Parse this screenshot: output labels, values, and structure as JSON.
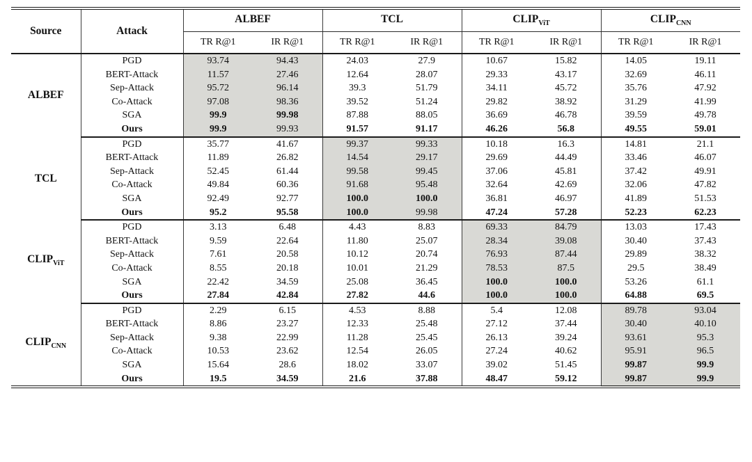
{
  "colors": {
    "highlight": "#d9d9d5",
    "rule": "#1a1a1a",
    "text": "#111111"
  },
  "table": {
    "col1_header": "Source",
    "col2_header": "Attack",
    "groups": [
      {
        "label": "ALBEF",
        "sub": ""
      },
      {
        "label": "TCL",
        "sub": ""
      },
      {
        "label": "CLIP",
        "sub": "ViT"
      },
      {
        "label": "CLIP",
        "sub": "CNN"
      }
    ],
    "subheaders": [
      "TR R@1",
      "IR R@1",
      "TR R@1",
      "IR R@1",
      "TR R@1",
      "IR R@1",
      "TR R@1",
      "IR R@1"
    ],
    "row_groups": [
      {
        "source": {
          "label": "ALBEF",
          "sub": ""
        },
        "rows": [
          {
            "attack": "PGD",
            "attack_bold": false,
            "values": [
              "93.74",
              "94.43",
              "24.03",
              "27.9",
              "10.67",
              "15.82",
              "14.05",
              "19.11"
            ],
            "bold": []
          },
          {
            "attack": "BERT-Attack",
            "attack_bold": false,
            "values": [
              "11.57",
              "27.46",
              "12.64",
              "28.07",
              "29.33",
              "43.17",
              "32.69",
              "46.11"
            ],
            "bold": []
          },
          {
            "attack": "Sep-Attack",
            "attack_bold": false,
            "values": [
              "95.72",
              "96.14",
              "39.3",
              "51.79",
              "34.11",
              "45.72",
              "35.76",
              "47.92"
            ],
            "bold": []
          },
          {
            "attack": "Co-Attack",
            "attack_bold": false,
            "values": [
              "97.08",
              "98.36",
              "39.52",
              "51.24",
              "29.82",
              "38.92",
              "31.29",
              "41.99"
            ],
            "bold": []
          },
          {
            "attack": "SGA",
            "attack_bold": false,
            "values": [
              "99.9",
              "99.98",
              "87.88",
              "88.05",
              "36.69",
              "46.78",
              "39.59",
              "49.78"
            ],
            "bold": [
              0,
              1
            ]
          },
          {
            "attack": "Ours",
            "attack_bold": true,
            "values": [
              "99.9",
              "99.93",
              "91.57",
              "91.17",
              "46.26",
              "56.8",
              "49.55",
              "59.01"
            ],
            "bold": [
              0,
              2,
              3,
              4,
              5,
              6,
              7
            ]
          }
        ]
      },
      {
        "source": {
          "label": "TCL",
          "sub": ""
        },
        "rows": [
          {
            "attack": "PGD",
            "attack_bold": false,
            "values": [
              "35.77",
              "41.67",
              "99.37",
              "99.33",
              "10.18",
              "16.3",
              "14.81",
              "21.1"
            ],
            "bold": []
          },
          {
            "attack": "BERT-Attack",
            "attack_bold": false,
            "values": [
              "11.89",
              "26.82",
              "14.54",
              "29.17",
              "29.69",
              "44.49",
              "33.46",
              "46.07"
            ],
            "bold": []
          },
          {
            "attack": "Sep-Attack",
            "attack_bold": false,
            "values": [
              "52.45",
              "61.44",
              "99.58",
              "99.45",
              "37.06",
              "45.81",
              "37.42",
              "49.91"
            ],
            "bold": []
          },
          {
            "attack": "Co-Attack",
            "attack_bold": false,
            "values": [
              "49.84",
              "60.36",
              "91.68",
              "95.48",
              "32.64",
              "42.69",
              "32.06",
              "47.82"
            ],
            "bold": []
          },
          {
            "attack": "SGA",
            "attack_bold": false,
            "values": [
              "92.49",
              "92.77",
              "100.0",
              "100.0",
              "36.81",
              "46.97",
              "41.89",
              "51.53"
            ],
            "bold": [
              2,
              3
            ]
          },
          {
            "attack": "Ours",
            "attack_bold": true,
            "values": [
              "95.2",
              "95.58",
              "100.0",
              "99.98",
              "47.24",
              "57.28",
              "52.23",
              "62.23"
            ],
            "bold": [
              0,
              1,
              2,
              4,
              5,
              6,
              7
            ]
          }
        ]
      },
      {
        "source": {
          "label": "CLIP",
          "sub": "ViT"
        },
        "rows": [
          {
            "attack": "PGD",
            "attack_bold": false,
            "values": [
              "3.13",
              "6.48",
              "4.43",
              "8.83",
              "69.33",
              "84.79",
              "13.03",
              "17.43"
            ],
            "bold": []
          },
          {
            "attack": "BERT-Attack",
            "attack_bold": false,
            "values": [
              "9.59",
              "22.64",
              "11.80",
              "25.07",
              "28.34",
              "39.08",
              "30.40",
              "37.43"
            ],
            "bold": []
          },
          {
            "attack": "Sep-Attack",
            "attack_bold": false,
            "values": [
              "7.61",
              "20.58",
              "10.12",
              "20.74",
              "76.93",
              "87.44",
              "29.89",
              "38.32"
            ],
            "bold": []
          },
          {
            "attack": "Co-Attack",
            "attack_bold": false,
            "values": [
              "8.55",
              "20.18",
              "10.01",
              "21.29",
              "78.53",
              "87.5",
              "29.5",
              "38.49"
            ],
            "bold": []
          },
          {
            "attack": "SGA",
            "attack_bold": false,
            "values": [
              "22.42",
              "34.59",
              "25.08",
              "36.45",
              "100.0",
              "100.0",
              "53.26",
              "61.1"
            ],
            "bold": [
              4,
              5
            ]
          },
          {
            "attack": "Ours",
            "attack_bold": true,
            "values": [
              "27.84",
              "42.84",
              "27.82",
              "44.6",
              "100.0",
              "100.0",
              "64.88",
              "69.5"
            ],
            "bold": [
              0,
              1,
              2,
              3,
              4,
              5,
              6,
              7
            ]
          }
        ]
      },
      {
        "source": {
          "label": "CLIP",
          "sub": "CNN"
        },
        "rows": [
          {
            "attack": "PGD",
            "attack_bold": false,
            "values": [
              "2.29",
              "6.15",
              "4.53",
              "8.88",
              "5.4",
              "12.08",
              "89.78",
              "93.04"
            ],
            "bold": []
          },
          {
            "attack": "BERT-Attack",
            "attack_bold": false,
            "values": [
              "8.86",
              "23.27",
              "12.33",
              "25.48",
              "27.12",
              "37.44",
              "30.40",
              "40.10"
            ],
            "bold": []
          },
          {
            "attack": "Sep-Attack",
            "attack_bold": false,
            "values": [
              "9.38",
              "22.99",
              "11.28",
              "25.45",
              "26.13",
              "39.24",
              "93.61",
              "95.3"
            ],
            "bold": []
          },
          {
            "attack": "Co-Attack",
            "attack_bold": false,
            "values": [
              "10.53",
              "23.62",
              "12.54",
              "26.05",
              "27.24",
              "40.62",
              "95.91",
              "96.5"
            ],
            "bold": []
          },
          {
            "attack": "SGA",
            "attack_bold": false,
            "values": [
              "15.64",
              "28.6",
              "18.02",
              "33.07",
              "39.02",
              "51.45",
              "99.87",
              "99.9"
            ],
            "bold": [
              6,
              7
            ]
          },
          {
            "attack": "Ours",
            "attack_bold": true,
            "values": [
              "19.5",
              "34.59",
              "21.6",
              "37.88",
              "48.47",
              "59.12",
              "99.87",
              "99.9"
            ],
            "bold": [
              0,
              1,
              2,
              3,
              4,
              5,
              6,
              7
            ]
          }
        ]
      }
    ]
  }
}
